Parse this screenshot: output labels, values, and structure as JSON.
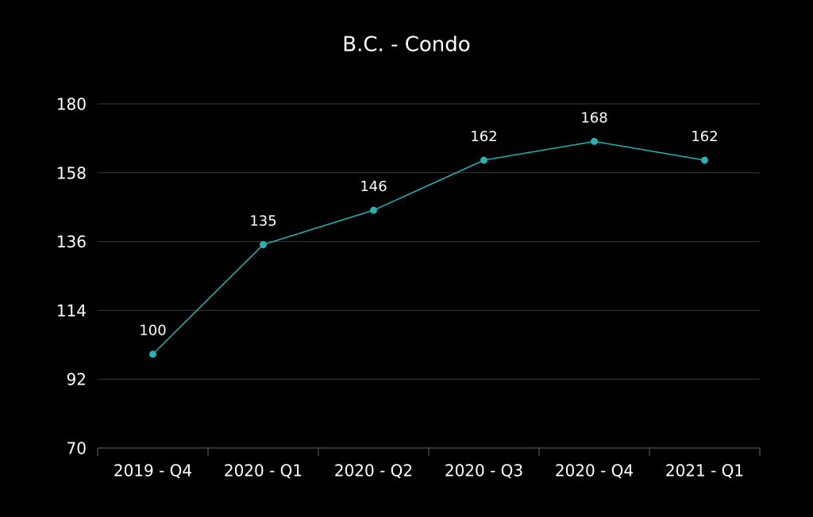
{
  "chart_data": {
    "type": "line",
    "title": "B.C. - Condo",
    "categories": [
      "2019 - Q4",
      "2020 - Q1",
      "2020 - Q2",
      "2020 - Q3",
      "2020 - Q4",
      "2021 - Q1"
    ],
    "values": [
      100,
      135,
      146,
      162,
      168,
      162
    ],
    "color": "#26b3b3",
    "ylim": [
      70,
      180
    ],
    "yticks": [
      70,
      92,
      114,
      136,
      158,
      180
    ],
    "grid": true
  }
}
